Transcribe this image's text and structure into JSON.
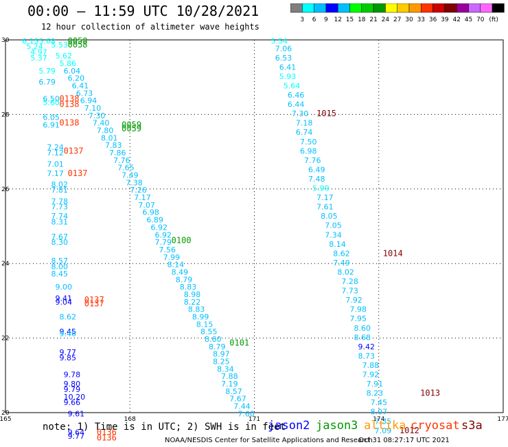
{
  "title": "00:00 – 11:59 UTC 10/28/2021",
  "subtitle": "12 hour collection of altimeter wave heights",
  "colorbar": {
    "colors": [
      "#7f7f7f",
      "#00ffff",
      "#00bfff",
      "#0000ff",
      "#00bfff",
      "#00ff00",
      "#00cc00",
      "#009900",
      "#ffff00",
      "#ffcc00",
      "#ff9900",
      "#ff3300",
      "#cc0000",
      "#800000",
      "#990099",
      "#cc66ff",
      "#ff66ff",
      "#000000"
    ],
    "labels": [
      "3",
      "6",
      "9",
      "12",
      "15",
      "18",
      "21",
      "24",
      "27",
      "30",
      "33",
      "36",
      "39",
      "42",
      "45",
      "70",
      "(ft)"
    ]
  },
  "footer": {
    "note": "note: 1) Time is in UTC; 2) SWH is in feet",
    "legend": [
      {
        "name": "jason2",
        "color": "#0000ff"
      },
      {
        "name": "jason3",
        "color": "#009900"
      },
      {
        "name": "altika",
        "color": "#ff9900"
      },
      {
        "name": "cryosat",
        "color": "#ff3300"
      },
      {
        "name": "s3a",
        "color": "#800000"
      }
    ],
    "credit": "NOAA/NESDIS Center for Satellite Applications and Research",
    "stamp": "Oct 31 08:27:17 UTC 2021"
  },
  "chart_data": {
    "type": "scatter",
    "xlim": [
      165,
      177
    ],
    "ylim": [
      20,
      30
    ],
    "xticks": [
      "165",
      "168",
      "171",
      "174",
      "177"
    ],
    "yticks": [
      "30",
      "28",
      "26",
      "24",
      "22",
      "20"
    ],
    "grid": true,
    "swh_points": [
      {
        "x": 165.4,
        "y": 29.9,
        "v": "6.15",
        "c": "#00ffff"
      },
      {
        "x": 165.8,
        "y": 29.9,
        "v": "5.68",
        "c": "#00ffff"
      },
      {
        "x": 165.5,
        "y": 29.75,
        "v": "5.24",
        "c": "#00ffff"
      },
      {
        "x": 165.6,
        "y": 29.6,
        "v": "4.97",
        "c": "#00ffff"
      },
      {
        "x": 165.6,
        "y": 29.45,
        "v": "5.37",
        "c": "#00ffff"
      },
      {
        "x": 165.8,
        "y": 29.1,
        "v": "5.79",
        "c": "#00ffff"
      },
      {
        "x": 165.8,
        "y": 28.8,
        "v": "6.79",
        "c": "#00bfff"
      },
      {
        "x": 165.9,
        "y": 28.35,
        "v": "6.50",
        "c": "#00bfff"
      },
      {
        "x": 165.9,
        "y": 28.25,
        "v": "5.60",
        "c": "#00ffff"
      },
      {
        "x": 165.9,
        "y": 27.85,
        "v": "6.05",
        "c": "#00bfff"
      },
      {
        "x": 165.9,
        "y": 27.65,
        "v": "6.91",
        "c": "#00bfff"
      },
      {
        "x": 166.0,
        "y": 27.05,
        "v": "7.24",
        "c": "#00bfff"
      },
      {
        "x": 166.0,
        "y": 26.9,
        "v": "7.12",
        "c": "#00bfff"
      },
      {
        "x": 166.0,
        "y": 26.6,
        "v": "7.01",
        "c": "#00bfff"
      },
      {
        "x": 166.0,
        "y": 26.35,
        "v": "7.17",
        "c": "#00bfff"
      },
      {
        "x": 166.1,
        "y": 26.05,
        "v": "8.02",
        "c": "#00bfff"
      },
      {
        "x": 166.1,
        "y": 25.9,
        "v": "7.81",
        "c": "#00bfff"
      },
      {
        "x": 166.1,
        "y": 25.6,
        "v": "7.78",
        "c": "#00bfff"
      },
      {
        "x": 166.1,
        "y": 25.45,
        "v": "7.73",
        "c": "#00bfff"
      },
      {
        "x": 166.1,
        "y": 25.2,
        "v": "7.74",
        "c": "#00bfff"
      },
      {
        "x": 166.1,
        "y": 25.05,
        "v": "8.31",
        "c": "#00bfff"
      },
      {
        "x": 166.1,
        "y": 24.65,
        "v": "7.67",
        "c": "#00bfff"
      },
      {
        "x": 166.1,
        "y": 24.5,
        "v": "8.30",
        "c": "#00bfff"
      },
      {
        "x": 166.1,
        "y": 24.0,
        "v": "8.57",
        "c": "#00bfff"
      },
      {
        "x": 166.1,
        "y": 23.85,
        "v": "8.00",
        "c": "#00bfff"
      },
      {
        "x": 166.1,
        "y": 23.65,
        "v": "8.45",
        "c": "#00bfff"
      },
      {
        "x": 166.2,
        "y": 23.3,
        "v": "9.00",
        "c": "#00bfff"
      },
      {
        "x": 166.2,
        "y": 23.0,
        "v": "9.41",
        "c": "#0000ff"
      },
      {
        "x": 166.2,
        "y": 22.9,
        "v": "9.04",
        "c": "#0000ff"
      },
      {
        "x": 166.3,
        "y": 22.5,
        "v": "8.62",
        "c": "#00bfff"
      },
      {
        "x": 166.3,
        "y": 22.1,
        "v": "9.45",
        "c": "#0000ff"
      },
      {
        "x": 166.3,
        "y": 22.05,
        "v": "9.46",
        "c": "#00bfff"
      },
      {
        "x": 166.3,
        "y": 21.55,
        "v": "9.77",
        "c": "#0000ff"
      },
      {
        "x": 166.3,
        "y": 21.4,
        "v": "9.85",
        "c": "#0000ff"
      },
      {
        "x": 166.4,
        "y": 20.95,
        "v": "9.78",
        "c": "#0000ff"
      },
      {
        "x": 166.4,
        "y": 20.7,
        "v": "9.80",
        "c": "#0000ff"
      },
      {
        "x": 166.4,
        "y": 20.55,
        "v": "9.79",
        "c": "#0000ff"
      },
      {
        "x": 166.4,
        "y": 20.35,
        "v": "10.20",
        "c": "#0000ff"
      },
      {
        "x": 166.4,
        "y": 20.2,
        "v": "9.66",
        "c": "#0000ff"
      },
      {
        "x": 166.5,
        "y": 19.9,
        "v": "9.61",
        "c": "#0000ff"
      },
      {
        "x": 166.5,
        "y": 19.4,
        "v": "9.64",
        "c": "#0000ff"
      },
      {
        "x": 166.5,
        "y": 19.3,
        "v": "9.77",
        "c": "#0000ff"
      },
      {
        "x": 166.1,
        "y": 29.8,
        "v": "5.53",
        "c": "#00ffff"
      },
      {
        "x": 166.2,
        "y": 29.5,
        "v": "5.62",
        "c": "#00ffff"
      },
      {
        "x": 166.3,
        "y": 29.3,
        "v": "5.86",
        "c": "#00ffff"
      },
      {
        "x": 166.4,
        "y": 29.1,
        "v": "6.04",
        "c": "#00bfff"
      },
      {
        "x": 166.5,
        "y": 28.9,
        "v": "6.20",
        "c": "#00bfff"
      },
      {
        "x": 166.6,
        "y": 28.7,
        "v": "6.41",
        "c": "#00bfff"
      },
      {
        "x": 166.7,
        "y": 28.5,
        "v": "6.73",
        "c": "#00bfff"
      },
      {
        "x": 166.8,
        "y": 28.3,
        "v": "6.94",
        "c": "#00bfff"
      },
      {
        "x": 166.9,
        "y": 28.1,
        "v": "7.10",
        "c": "#00bfff"
      },
      {
        "x": 167.0,
        "y": 27.9,
        "v": "7.30",
        "c": "#00bfff"
      },
      {
        "x": 167.1,
        "y": 27.7,
        "v": "7.40",
        "c": "#00bfff"
      },
      {
        "x": 167.2,
        "y": 27.5,
        "v": "7.80",
        "c": "#00bfff"
      },
      {
        "x": 167.3,
        "y": 27.3,
        "v": "8.01",
        "c": "#00bfff"
      },
      {
        "x": 167.4,
        "y": 27.1,
        "v": "7.83",
        "c": "#00bfff"
      },
      {
        "x": 167.5,
        "y": 26.9,
        "v": "7.86",
        "c": "#00bfff"
      },
      {
        "x": 167.6,
        "y": 26.7,
        "v": "7.76",
        "c": "#00bfff"
      },
      {
        "x": 167.7,
        "y": 26.5,
        "v": "7.65",
        "c": "#00bfff"
      },
      {
        "x": 167.8,
        "y": 26.3,
        "v": "7.49",
        "c": "#00bfff"
      },
      {
        "x": 167.9,
        "y": 26.1,
        "v": "7.38",
        "c": "#00bfff"
      },
      {
        "x": 168.0,
        "y": 25.9,
        "v": "7.26",
        "c": "#00bfff"
      },
      {
        "x": 168.1,
        "y": 25.7,
        "v": "7.17",
        "c": "#00bfff"
      },
      {
        "x": 168.2,
        "y": 25.5,
        "v": "7.07",
        "c": "#00bfff"
      },
      {
        "x": 168.3,
        "y": 25.3,
        "v": "6.98",
        "c": "#00bfff"
      },
      {
        "x": 168.4,
        "y": 25.1,
        "v": "6.89",
        "c": "#00bfff"
      },
      {
        "x": 168.5,
        "y": 24.9,
        "v": "6.92",
        "c": "#00bfff"
      },
      {
        "x": 168.6,
        "y": 24.7,
        "v": "6.92",
        "c": "#00bfff"
      },
      {
        "x": 168.6,
        "y": 24.5,
        "v": "7.79",
        "c": "#00bfff"
      },
      {
        "x": 168.7,
        "y": 24.3,
        "v": "7.56",
        "c": "#00bfff"
      },
      {
        "x": 168.8,
        "y": 24.1,
        "v": "7.99",
        "c": "#00bfff"
      },
      {
        "x": 168.9,
        "y": 23.9,
        "v": "8.14",
        "c": "#00bfff"
      },
      {
        "x": 169.0,
        "y": 23.7,
        "v": "8.49",
        "c": "#00bfff"
      },
      {
        "x": 169.1,
        "y": 23.5,
        "v": "8.79",
        "c": "#00bfff"
      },
      {
        "x": 169.2,
        "y": 23.3,
        "v": "8.83",
        "c": "#00bfff"
      },
      {
        "x": 169.3,
        "y": 23.1,
        "v": "8.98",
        "c": "#00bfff"
      },
      {
        "x": 169.3,
        "y": 22.9,
        "v": "8.22",
        "c": "#00bfff"
      },
      {
        "x": 169.4,
        "y": 22.7,
        "v": "8.83",
        "c": "#00bfff"
      },
      {
        "x": 169.5,
        "y": 22.5,
        "v": "8.99",
        "c": "#00bfff"
      },
      {
        "x": 169.6,
        "y": 22.3,
        "v": "8.15",
        "c": "#00bfff"
      },
      {
        "x": 169.7,
        "y": 22.1,
        "v": "8.55",
        "c": "#00bfff"
      },
      {
        "x": 169.8,
        "y": 21.9,
        "v": "8.60",
        "c": "#00bfff"
      },
      {
        "x": 169.9,
        "y": 21.7,
        "v": "8.79",
        "c": "#00bfff"
      },
      {
        "x": 170.0,
        "y": 21.5,
        "v": "8.97",
        "c": "#00bfff"
      },
      {
        "x": 170.0,
        "y": 21.3,
        "v": "8.25",
        "c": "#00bfff"
      },
      {
        "x": 170.1,
        "y": 21.1,
        "v": "8.34",
        "c": "#00bfff"
      },
      {
        "x": 170.2,
        "y": 20.9,
        "v": "7.88",
        "c": "#00bfff"
      },
      {
        "x": 170.2,
        "y": 20.7,
        "v": "7.19",
        "c": "#00bfff"
      },
      {
        "x": 170.3,
        "y": 20.5,
        "v": "8.57",
        "c": "#00bfff"
      },
      {
        "x": 170.4,
        "y": 20.3,
        "v": "7.67",
        "c": "#00bfff"
      },
      {
        "x": 170.5,
        "y": 20.1,
        "v": "7.44",
        "c": "#00bfff"
      },
      {
        "x": 170.6,
        "y": 19.9,
        "v": "7.60",
        "c": "#00bfff"
      },
      {
        "x": 171.4,
        "y": 29.9,
        "v": "5.54",
        "c": "#00ffff"
      },
      {
        "x": 171.5,
        "y": 29.7,
        "v": "7.06",
        "c": "#00bfff"
      },
      {
        "x": 171.5,
        "y": 29.45,
        "v": "6.53",
        "c": "#00bfff"
      },
      {
        "x": 171.6,
        "y": 29.2,
        "v": "6.41",
        "c": "#00bfff"
      },
      {
        "x": 171.6,
        "y": 28.95,
        "v": "5.93",
        "c": "#00ffff"
      },
      {
        "x": 171.7,
        "y": 28.7,
        "v": "5.64",
        "c": "#00ffff"
      },
      {
        "x": 171.8,
        "y": 28.45,
        "v": "6.46",
        "c": "#00bfff"
      },
      {
        "x": 171.8,
        "y": 28.2,
        "v": "6.44",
        "c": "#00bfff"
      },
      {
        "x": 171.9,
        "y": 27.95,
        "v": "7.30",
        "c": "#00bfff"
      },
      {
        "x": 172.0,
        "y": 27.7,
        "v": "7.18",
        "c": "#00bfff"
      },
      {
        "x": 172.0,
        "y": 27.45,
        "v": "6.74",
        "c": "#00bfff"
      },
      {
        "x": 172.1,
        "y": 27.2,
        "v": "7.50",
        "c": "#00bfff"
      },
      {
        "x": 172.1,
        "y": 26.95,
        "v": "6.98",
        "c": "#00bfff"
      },
      {
        "x": 172.2,
        "y": 26.7,
        "v": "7.76",
        "c": "#00bfff"
      },
      {
        "x": 172.3,
        "y": 26.45,
        "v": "6.49",
        "c": "#00bfff"
      },
      {
        "x": 172.3,
        "y": 26.2,
        "v": "7.48",
        "c": "#00bfff"
      },
      {
        "x": 172.4,
        "y": 25.95,
        "v": "5.99",
        "c": "#00ffff"
      },
      {
        "x": 172.5,
        "y": 25.7,
        "v": "7.17",
        "c": "#00bfff"
      },
      {
        "x": 172.5,
        "y": 25.45,
        "v": "7.61",
        "c": "#00bfff"
      },
      {
        "x": 172.6,
        "y": 25.2,
        "v": "8.05",
        "c": "#00bfff"
      },
      {
        "x": 172.7,
        "y": 24.95,
        "v": "7.05",
        "c": "#00bfff"
      },
      {
        "x": 172.7,
        "y": 24.7,
        "v": "7.34",
        "c": "#00bfff"
      },
      {
        "x": 172.8,
        "y": 24.45,
        "v": "8.14",
        "c": "#00bfff"
      },
      {
        "x": 172.9,
        "y": 24.2,
        "v": "8.62",
        "c": "#00bfff"
      },
      {
        "x": 172.9,
        "y": 23.95,
        "v": "7.49",
        "c": "#00bfff"
      },
      {
        "x": 173.0,
        "y": 23.7,
        "v": "8.02",
        "c": "#00bfff"
      },
      {
        "x": 173.1,
        "y": 23.45,
        "v": "7.28",
        "c": "#00bfff"
      },
      {
        "x": 173.1,
        "y": 23.2,
        "v": "7.73",
        "c": "#00bfff"
      },
      {
        "x": 173.2,
        "y": 22.95,
        "v": "7.92",
        "c": "#00bfff"
      },
      {
        "x": 173.3,
        "y": 22.7,
        "v": "7.98",
        "c": "#00bfff"
      },
      {
        "x": 173.3,
        "y": 22.45,
        "v": "7.95",
        "c": "#00bfff"
      },
      {
        "x": 173.4,
        "y": 22.2,
        "v": "8.60",
        "c": "#00bfff"
      },
      {
        "x": 173.4,
        "y": 21.95,
        "v": "8.68",
        "c": "#00bfff"
      },
      {
        "x": 173.5,
        "y": 21.7,
        "v": "9.42",
        "c": "#0000ff"
      },
      {
        "x": 173.5,
        "y": 21.45,
        "v": "8.73",
        "c": "#00bfff"
      },
      {
        "x": 173.6,
        "y": 21.2,
        "v": "7.88",
        "c": "#00bfff"
      },
      {
        "x": 173.6,
        "y": 20.95,
        "v": "7.92",
        "c": "#00bfff"
      },
      {
        "x": 173.7,
        "y": 20.7,
        "v": "7.91",
        "c": "#00bfff"
      },
      {
        "x": 173.7,
        "y": 20.45,
        "v": "8.23",
        "c": "#00bfff"
      },
      {
        "x": 173.8,
        "y": 20.2,
        "v": "7.45",
        "c": "#00bfff"
      },
      {
        "x": 173.8,
        "y": 19.95,
        "v": "8.07",
        "c": "#00bfff"
      },
      {
        "x": 173.9,
        "y": 19.7,
        "v": "7.35",
        "c": "#00bfff"
      },
      {
        "x": 173.9,
        "y": 19.45,
        "v": "7.09",
        "c": "#00bfff"
      }
    ],
    "time_labels": [
      {
        "x": 166.5,
        "y": 29.9,
        "t": "0058",
        "c": "#009900"
      },
      {
        "x": 166.5,
        "y": 29.8,
        "t": "0058",
        "c": "#009900"
      },
      {
        "x": 166.3,
        "y": 28.35,
        "t": "0138",
        "c": "#ff3300"
      },
      {
        "x": 166.3,
        "y": 28.2,
        "t": "0138",
        "c": "#ff3300"
      },
      {
        "x": 166.3,
        "y": 27.7,
        "t": "0138",
        "c": "#ff3300"
      },
      {
        "x": 166.4,
        "y": 26.95,
        "t": "0137",
        "c": "#ff3300"
      },
      {
        "x": 166.5,
        "y": 26.35,
        "t": "0137",
        "c": "#ff3300"
      },
      {
        "x": 167.8,
        "y": 27.65,
        "t": "0059",
        "c": "#009900"
      },
      {
        "x": 167.8,
        "y": 27.55,
        "t": "0059",
        "c": "#009900"
      },
      {
        "x": 169.0,
        "y": 24.55,
        "t": "0100",
        "c": "#009900"
      },
      {
        "x": 166.9,
        "y": 22.95,
        "t": "0137",
        "c": "#ff3300"
      },
      {
        "x": 166.9,
        "y": 22.85,
        "t": "0137",
        "c": "#ff3300"
      },
      {
        "x": 170.4,
        "y": 21.8,
        "t": "0101",
        "c": "#009900"
      },
      {
        "x": 167.2,
        "y": 19.4,
        "t": "0136",
        "c": "#ff3300"
      },
      {
        "x": 167.2,
        "y": 19.25,
        "t": "0136",
        "c": "#ff3300"
      },
      {
        "x": 172.5,
        "y": 27.95,
        "t": "1015",
        "c": "#800000"
      },
      {
        "x": 174.1,
        "y": 24.2,
        "t": "1014",
        "c": "#800000"
      },
      {
        "x": 175.0,
        "y": 20.45,
        "t": "1013",
        "c": "#800000"
      },
      {
        "x": 174.5,
        "y": 19.45,
        "t": "1012",
        "c": "#800000"
      }
    ]
  }
}
